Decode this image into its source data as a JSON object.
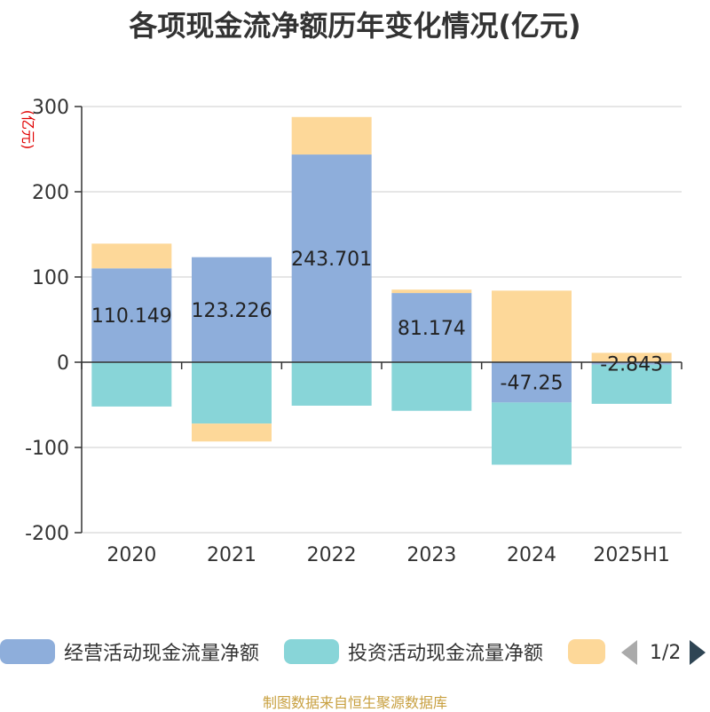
{
  "title": "各项现金流净额历年变化情况(亿元)",
  "source": "制图数据来自恒生聚源数据库",
  "legend": {
    "items": [
      {
        "label": "经营活动现金流量净额",
        "color": "#8eaedb"
      },
      {
        "label": "投资活动现金流量净额",
        "color": "#88d5d8"
      },
      {
        "label": "",
        "color": "#fdd899"
      }
    ],
    "page": "1/2"
  },
  "chart_data": {
    "type": "bar",
    "stacked": true,
    "ylabel": "(亿元)",
    "ylim": [
      -200,
      300
    ],
    "yticks": [
      -200,
      -100,
      0,
      100,
      200,
      300
    ],
    "grid": true,
    "categories": [
      "2020",
      "2021",
      "2022",
      "2023",
      "2024",
      "2025H1"
    ],
    "series": [
      {
        "name": "经营活动现金流量净额",
        "color": "#8eaedb",
        "values": [
          110.149,
          123.226,
          243.701,
          81.174,
          -47.25,
          -2.843
        ],
        "labels": [
          "110.149",
          "123.226",
          "243.701",
          "81.174",
          "-47.25",
          "-2.843"
        ]
      },
      {
        "name": "投资活动现金流量净额",
        "color": "#88d5d8",
        "values": [
          -52,
          -72,
          -51,
          -57,
          -73,
          -46
        ]
      },
      {
        "name": "",
        "color": "#fdd899",
        "values": [
          29,
          -21,
          44,
          4,
          84,
          11
        ]
      }
    ]
  }
}
